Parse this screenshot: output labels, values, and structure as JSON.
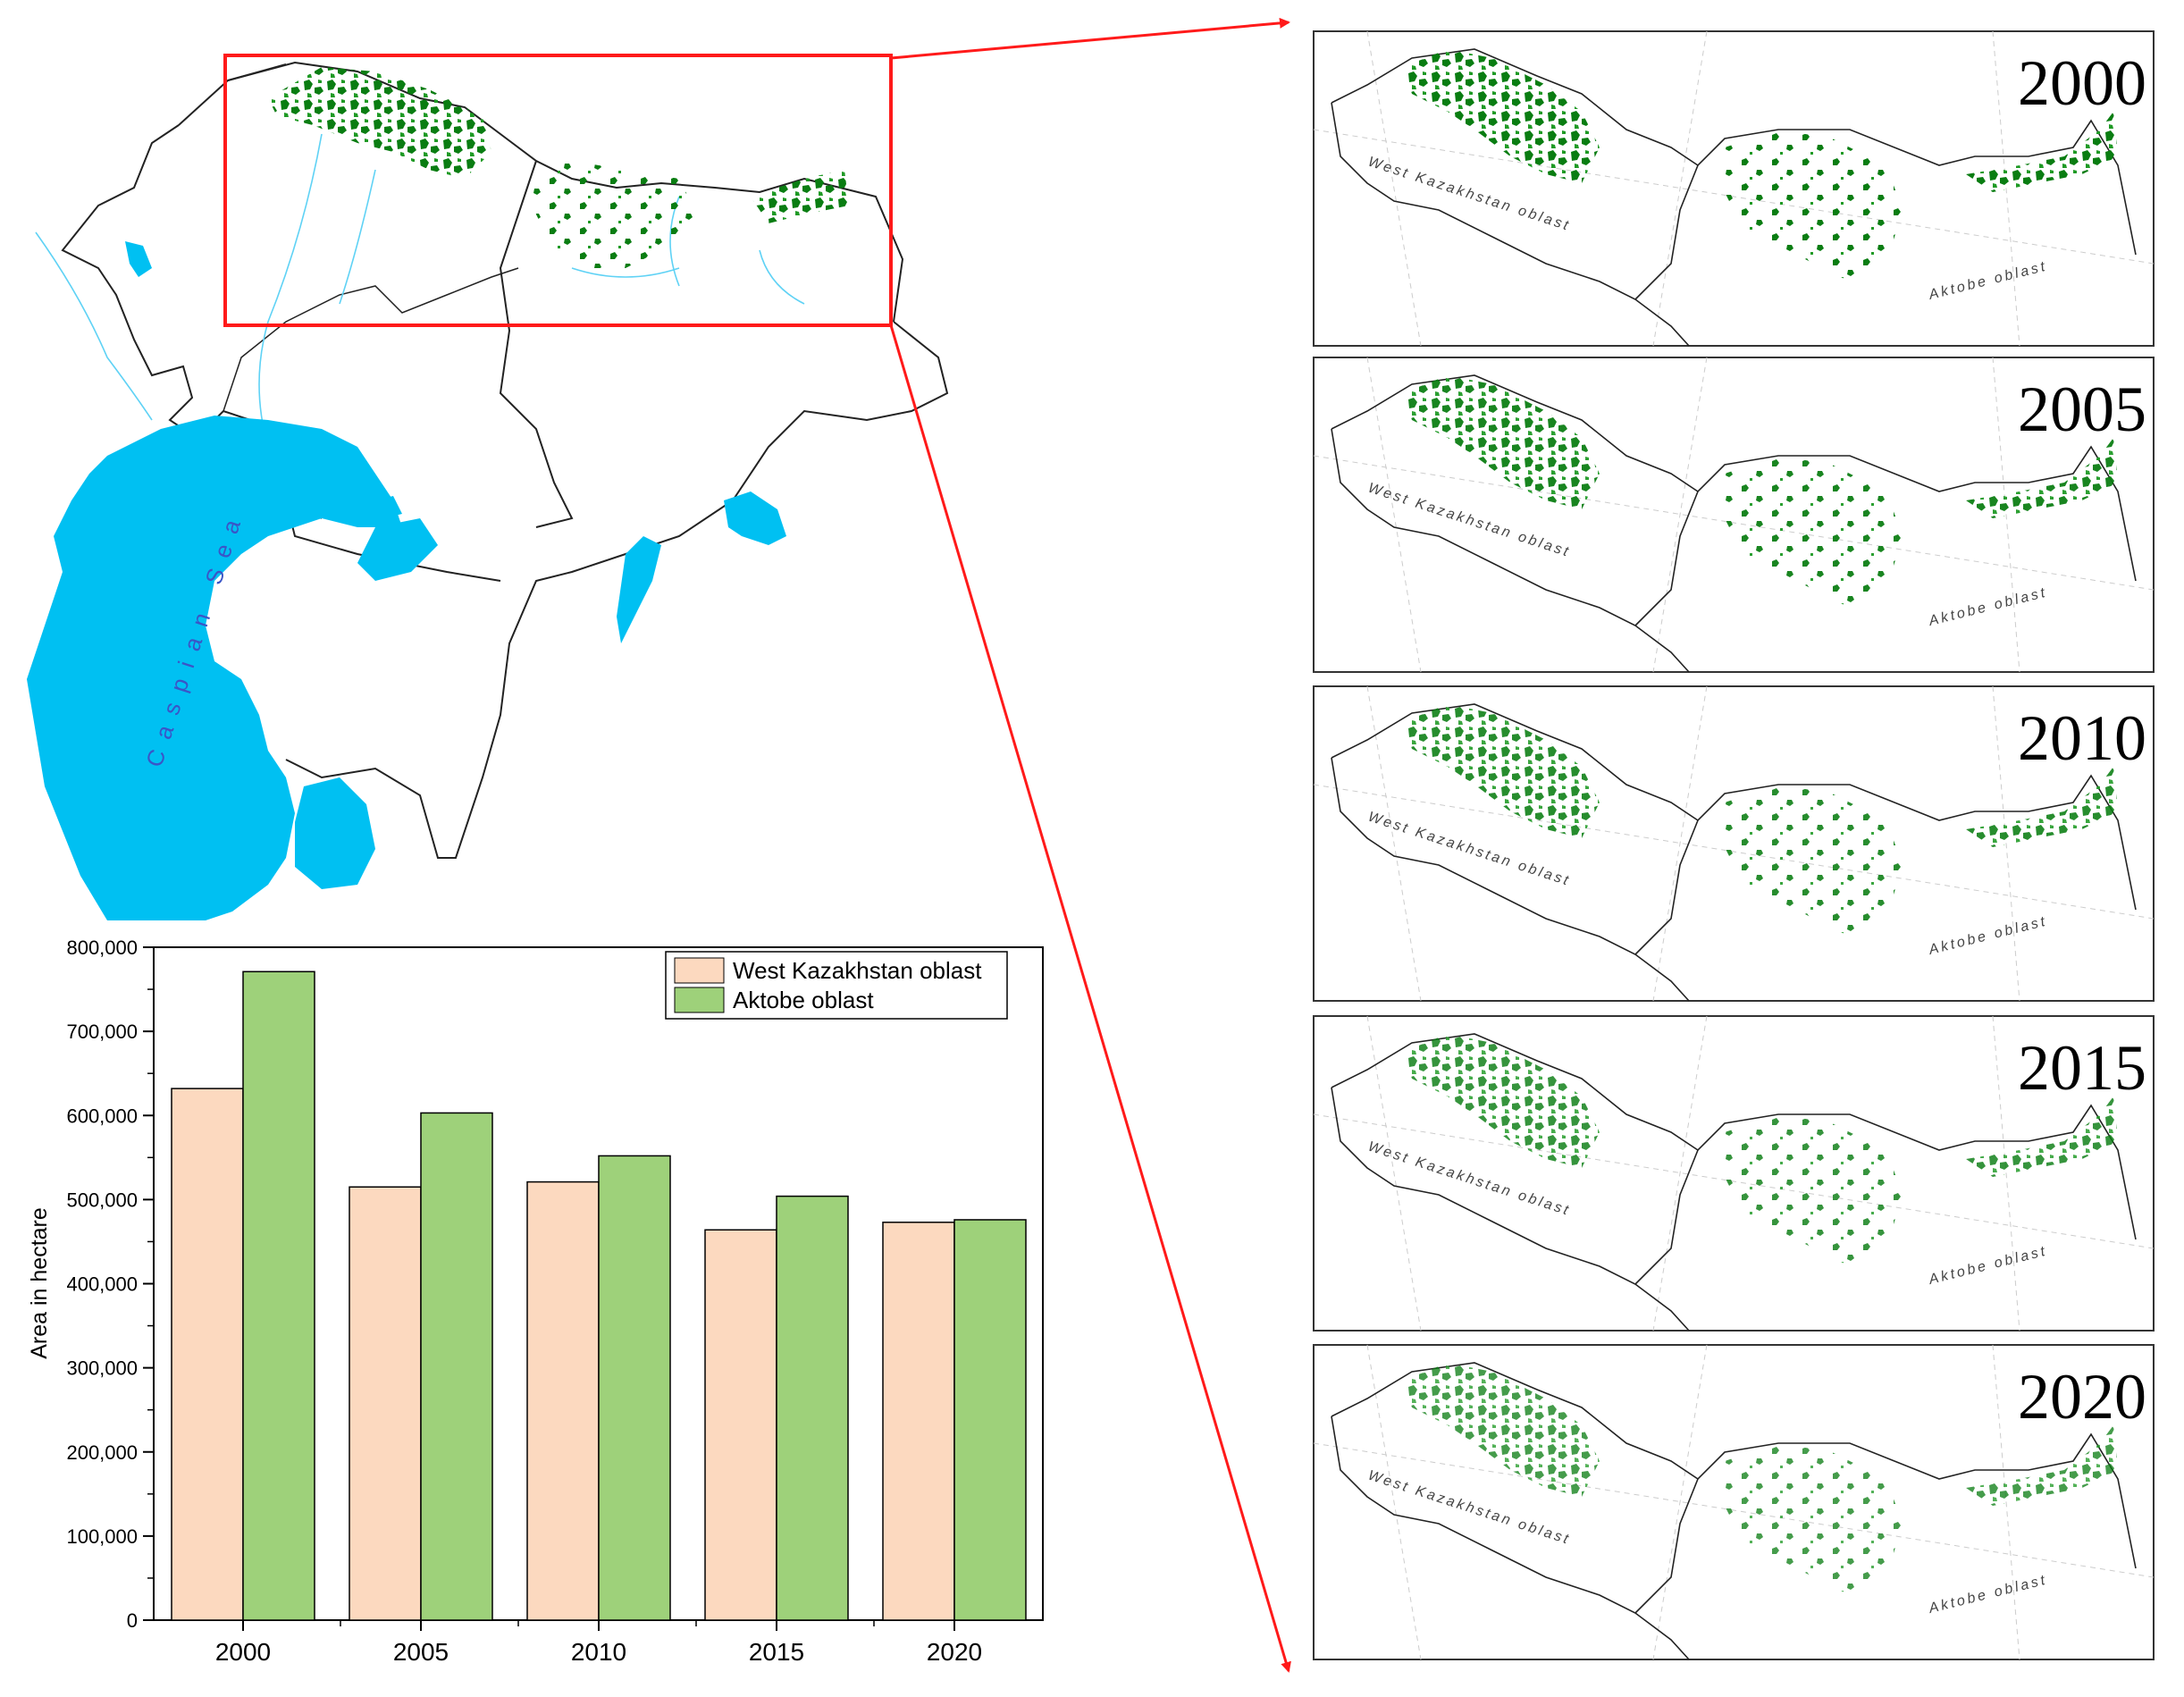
{
  "chart_data": {
    "type": "bar",
    "categories": [
      "2000",
      "2005",
      "2010",
      "2015",
      "2020"
    ],
    "series": [
      {
        "name": "West Kazakhstan oblast",
        "values": [
          632000,
          515000,
          521000,
          464000,
          473000
        ]
      },
      {
        "name": "Aktobe oblast",
        "values": [
          771000,
          603000,
          552000,
          504000,
          476000
        ]
      }
    ],
    "title": "",
    "xlabel": "",
    "ylabel": "Area in hectare",
    "ylim": [
      0,
      800000
    ],
    "yticks": [
      "0",
      "100,000",
      "200,000",
      "300,000",
      "400,000",
      "500,000",
      "600,000",
      "700,000",
      "800,000"
    ],
    "grid": false,
    "legend_position": "top-right"
  },
  "colors": {
    "west_kazakhstan": "#fcd9bf",
    "aktobe": "#9ed17a",
    "vegetation": "#0a7d12",
    "water": "#00c0f2",
    "highlight": "#ff1a1a",
    "boundary": "#222222"
  },
  "overview_map": {
    "sea_label": "Caspian Sea"
  },
  "panels": [
    {
      "year": "2000",
      "region_west": "West Kazakhstan oblast",
      "region_east": "Aktobe oblast"
    },
    {
      "year": "2005",
      "region_west": "West Kazakhstan oblast",
      "region_east": "Aktobe oblast"
    },
    {
      "year": "2010",
      "region_west": "West Kazakhstan oblast",
      "region_east": "Aktobe oblast"
    },
    {
      "year": "2015",
      "region_west": "West Kazakhstan oblast",
      "region_east": "Aktobe oblast"
    },
    {
      "year": "2020",
      "region_west": "West Kazakhstan oblast",
      "region_east": "Aktobe oblast"
    }
  ]
}
